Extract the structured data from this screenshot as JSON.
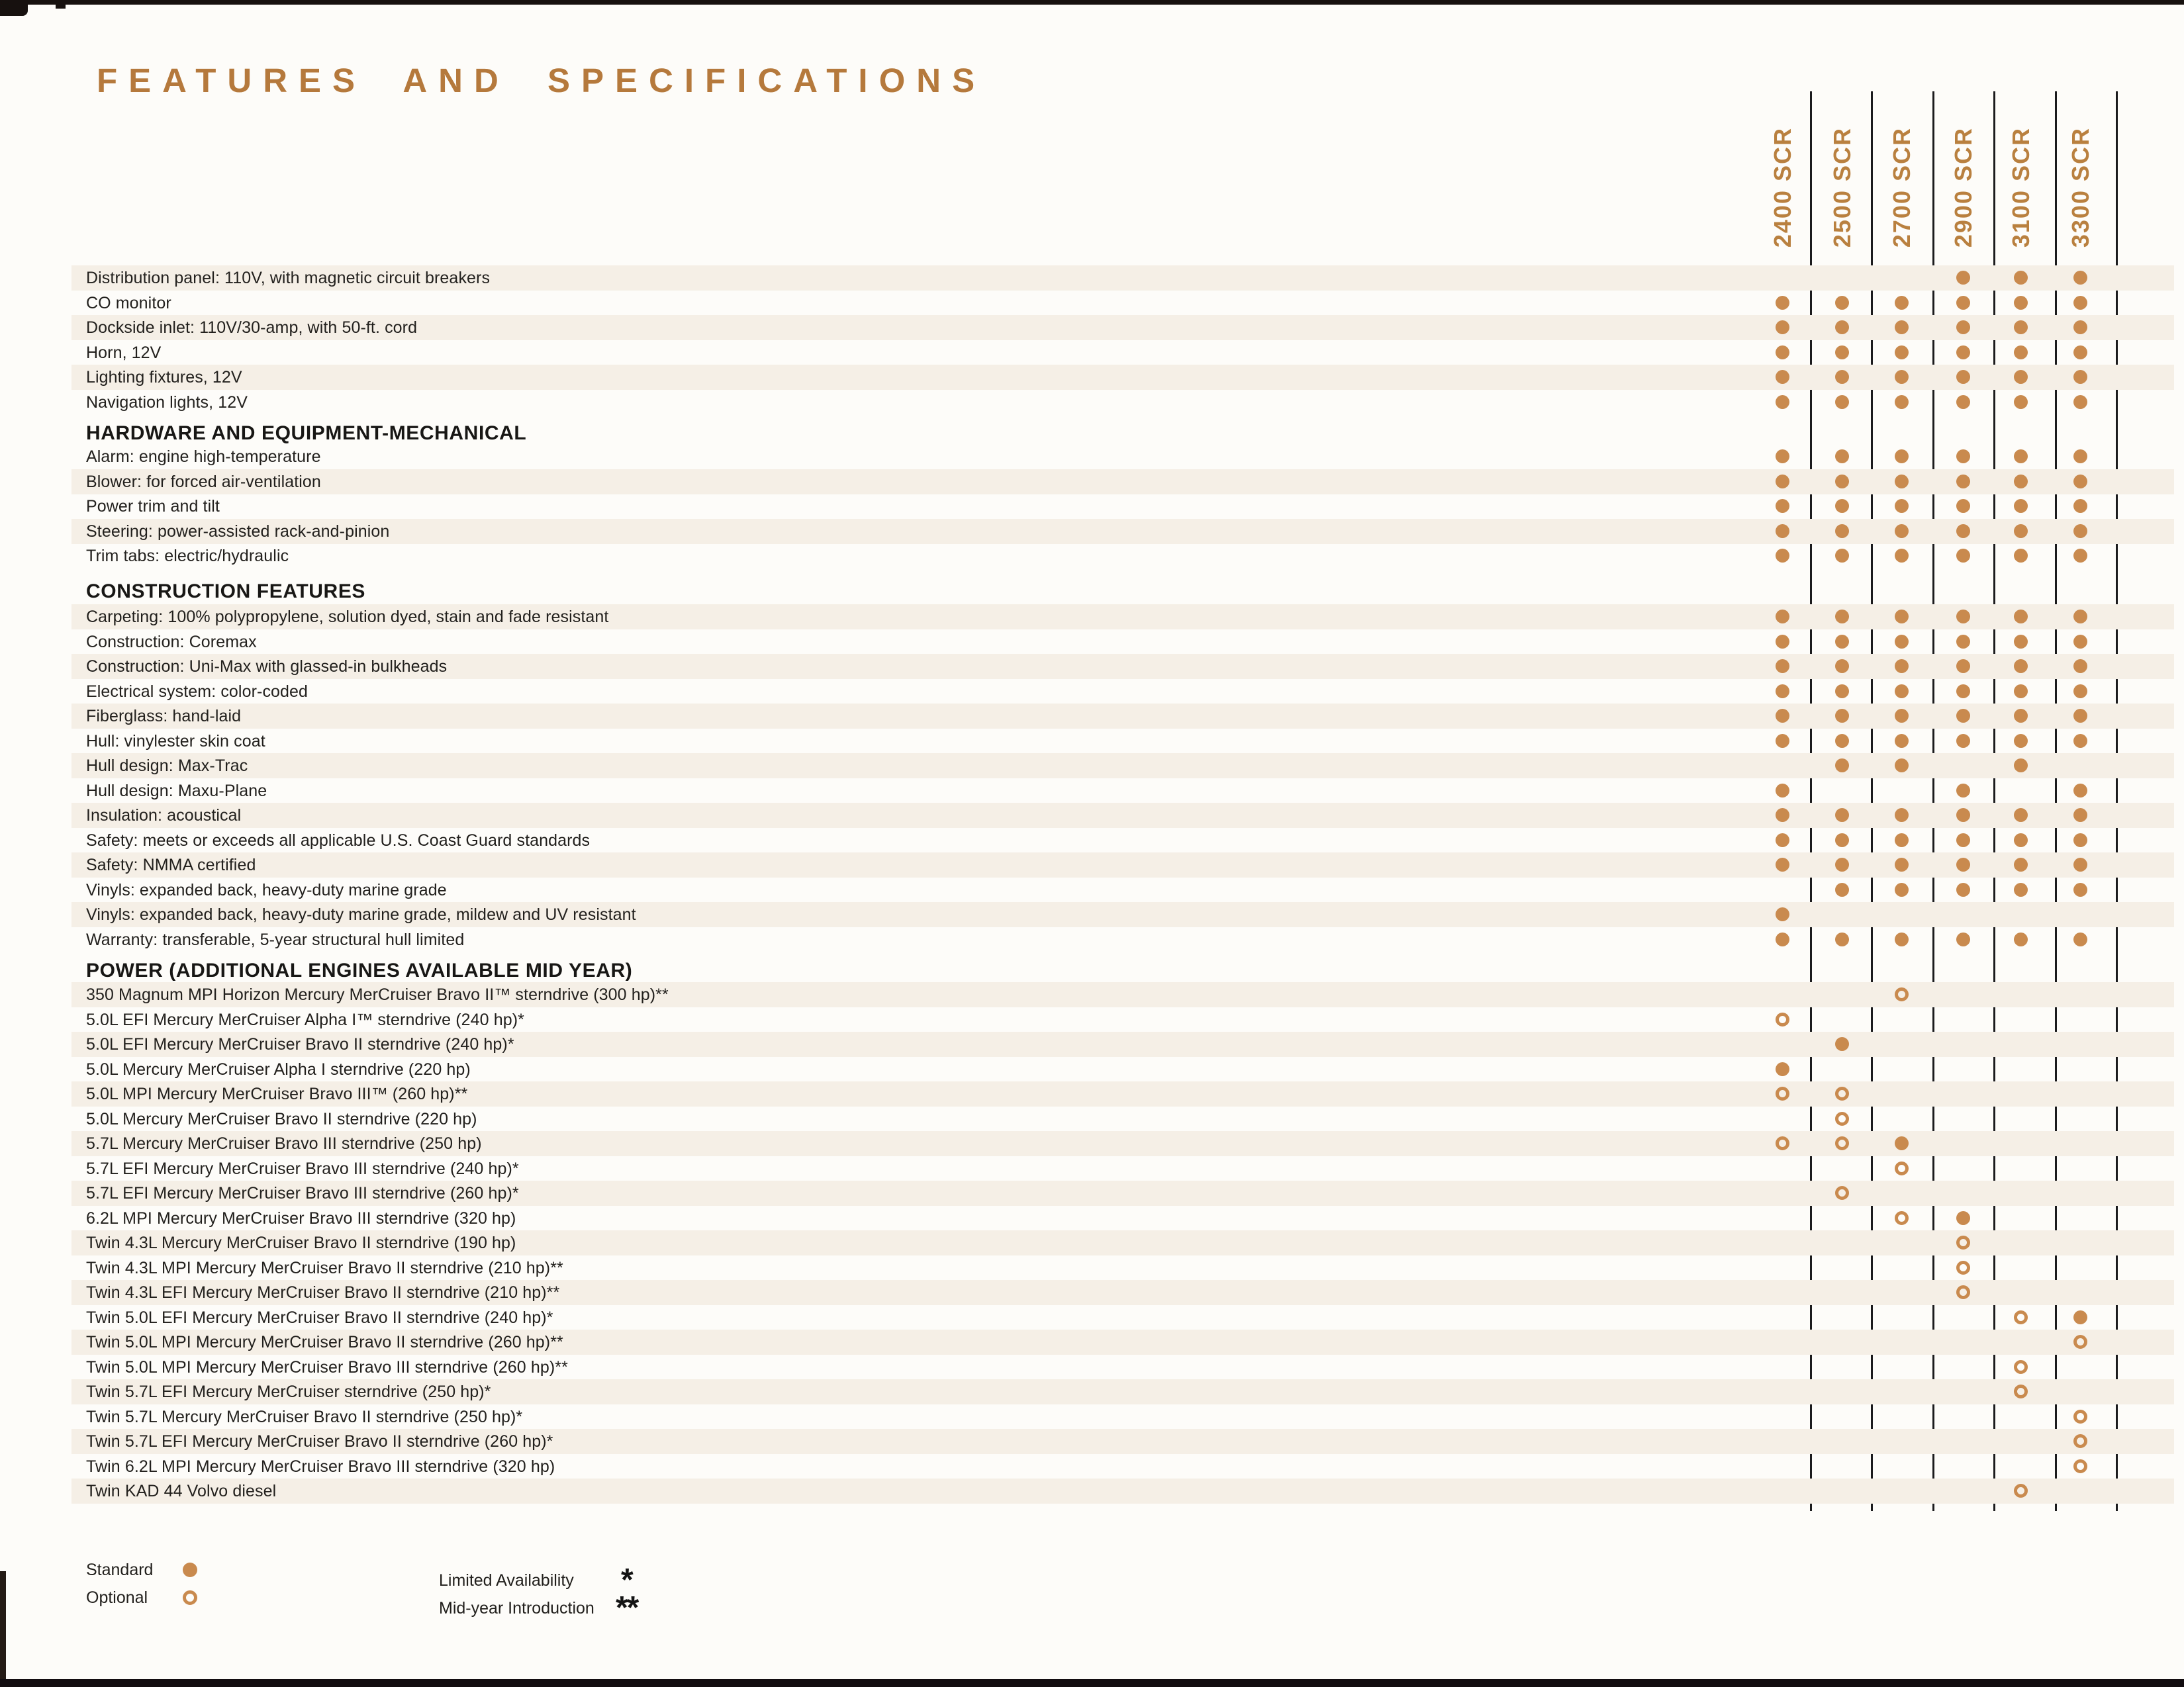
{
  "page": {
    "title": "FEATURES AND SPECIFICATIONS"
  },
  "columns": [
    "2400 SCR",
    "2500 SCR",
    "2700 SCR",
    "2900 SCR",
    "3100 SCR",
    "3300 SCR"
  ],
  "legend": {
    "standard": "Standard",
    "optional": "Optional",
    "limited": "Limited Availability",
    "limited_symbol": "*",
    "midyear": "Mid-year Introduction",
    "midyear_symbol": "**"
  },
  "colors": {
    "accent": "#b5793c",
    "marker": "#c98a4e",
    "stripe": "#f5efe6",
    "text": "#22201d"
  },
  "marker_legend": {
    "S": "standard-filled-dot",
    "O": "optional-open-circle"
  },
  "sections": [
    {
      "header": "",
      "rows": [
        {
          "label": "Distribution panel: 110V, with magnetic circuit breakers",
          "marks": [
            "",
            "",
            "",
            "S",
            "S",
            "S"
          ]
        },
        {
          "label": "CO monitor",
          "marks": [
            "S",
            "S",
            "S",
            "S",
            "S",
            "S"
          ]
        },
        {
          "label": "Dockside inlet: 110V/30-amp, with 50-ft. cord",
          "marks": [
            "S",
            "S",
            "S",
            "S",
            "S",
            "S"
          ]
        },
        {
          "label": "Horn, 12V",
          "marks": [
            "S",
            "S",
            "S",
            "S",
            "S",
            "S"
          ]
        },
        {
          "label": "Lighting fixtures, 12V",
          "marks": [
            "S",
            "S",
            "S",
            "S",
            "S",
            "S"
          ]
        },
        {
          "label": "Navigation lights, 12V",
          "marks": [
            "S",
            "S",
            "S",
            "S",
            "S",
            "S"
          ]
        }
      ]
    },
    {
      "header": "HARDWARE AND EQUIPMENT-MECHANICAL",
      "rows": [
        {
          "label": "Alarm: engine high-temperature",
          "marks": [
            "S",
            "S",
            "S",
            "S",
            "S",
            "S"
          ]
        },
        {
          "label": "Blower: for forced air-ventilation",
          "marks": [
            "S",
            "S",
            "S",
            "S",
            "S",
            "S"
          ]
        },
        {
          "label": "Power trim and tilt",
          "marks": [
            "S",
            "S",
            "S",
            "S",
            "S",
            "S"
          ]
        },
        {
          "label": "Steering: power-assisted rack-and-pinion",
          "marks": [
            "S",
            "S",
            "S",
            "S",
            "S",
            "S"
          ]
        },
        {
          "label": "Trim tabs: electric/hydraulic",
          "marks": [
            "S",
            "S",
            "S",
            "S",
            "S",
            "S"
          ]
        }
      ]
    },
    {
      "header": "CONSTRUCTION FEATURES",
      "rows": [
        {
          "label": "Carpeting: 100% polypropylene, solution dyed, stain and fade resistant",
          "marks": [
            "S",
            "S",
            "S",
            "S",
            "S",
            "S"
          ]
        },
        {
          "label": "Construction: Coremax",
          "marks": [
            "S",
            "S",
            "S",
            "S",
            "S",
            "S"
          ]
        },
        {
          "label": "Construction: Uni-Max with glassed-in bulkheads",
          "marks": [
            "S",
            "S",
            "S",
            "S",
            "S",
            "S"
          ]
        },
        {
          "label": "Electrical system: color-coded",
          "marks": [
            "S",
            "S",
            "S",
            "S",
            "S",
            "S"
          ]
        },
        {
          "label": "Fiberglass: hand-laid",
          "marks": [
            "S",
            "S",
            "S",
            "S",
            "S",
            "S"
          ]
        },
        {
          "label": "Hull: vinylester skin coat",
          "marks": [
            "S",
            "S",
            "S",
            "S",
            "S",
            "S"
          ]
        },
        {
          "label": "Hull design: Max-Trac",
          "marks": [
            "",
            "S",
            "S",
            "",
            "S",
            ""
          ]
        },
        {
          "label": "Hull design: Maxu-Plane",
          "marks": [
            "S",
            "",
            "",
            "S",
            "",
            "S"
          ]
        },
        {
          "label": "Insulation: acoustical",
          "marks": [
            "S",
            "S",
            "S",
            "S",
            "S",
            "S"
          ]
        },
        {
          "label": "Safety: meets or exceeds all applicable U.S. Coast Guard standards",
          "marks": [
            "S",
            "S",
            "S",
            "S",
            "S",
            "S"
          ]
        },
        {
          "label": "Safety: NMMA certified",
          "marks": [
            "S",
            "S",
            "S",
            "S",
            "S",
            "S"
          ]
        },
        {
          "label": "Vinyls: expanded back, heavy-duty marine grade",
          "marks": [
            "",
            "S",
            "S",
            "S",
            "S",
            "S"
          ]
        },
        {
          "label": "Vinyls: expanded back, heavy-duty marine grade, mildew and UV resistant",
          "marks": [
            "S",
            "",
            "",
            "",
            "",
            ""
          ]
        },
        {
          "label": "Warranty: transferable, 5-year structural hull limited",
          "marks": [
            "S",
            "S",
            "S",
            "S",
            "S",
            "S"
          ]
        }
      ]
    },
    {
      "header": "POWER (ADDITIONAL ENGINES AVAILABLE MID YEAR)",
      "rows": [
        {
          "label": "350 Magnum MPI Horizon Mercury MerCruiser Bravo II™ sterndrive (300 hp)**",
          "marks": [
            "",
            "",
            "O",
            "",
            "",
            ""
          ]
        },
        {
          "label": "5.0L EFI Mercury MerCruiser Alpha I™ sterndrive (240 hp)*",
          "marks": [
            "O",
            "",
            "",
            "",
            "",
            ""
          ]
        },
        {
          "label": "5.0L EFI Mercury MerCruiser Bravo II sterndrive (240 hp)*",
          "marks": [
            "",
            "S",
            "",
            "",
            "",
            ""
          ]
        },
        {
          "label": "5.0L Mercury MerCruiser Alpha I sterndrive (220 hp)",
          "marks": [
            "S",
            "",
            "",
            "",
            "",
            ""
          ]
        },
        {
          "label": "5.0L MPI Mercury MerCruiser Bravo III™ (260 hp)**",
          "marks": [
            "O",
            "O",
            "",
            "",
            "",
            ""
          ]
        },
        {
          "label": "5.0L Mercury MerCruiser Bravo II sterndrive (220 hp)",
          "marks": [
            "",
            "O",
            "",
            "",
            "",
            ""
          ]
        },
        {
          "label": "5.7L Mercury MerCruiser Bravo III sterndrive (250 hp)",
          "marks": [
            "O",
            "O",
            "S",
            "",
            "",
            ""
          ]
        },
        {
          "label": "5.7L EFI Mercury MerCruiser Bravo III sterndrive (240 hp)*",
          "marks": [
            "",
            "",
            "O",
            "",
            "",
            ""
          ]
        },
        {
          "label": "5.7L EFI Mercury MerCruiser Bravo III sterndrive (260 hp)*",
          "marks": [
            "",
            "O",
            "",
            "",
            "",
            ""
          ]
        },
        {
          "label": "6.2L MPI Mercury MerCruiser Bravo III sterndrive (320 hp)",
          "marks": [
            "",
            "",
            "O",
            "S",
            "",
            ""
          ]
        },
        {
          "label": "Twin 4.3L Mercury MerCruiser Bravo II sterndrive (190 hp)",
          "marks": [
            "",
            "",
            "",
            "O",
            "",
            ""
          ]
        },
        {
          "label": "Twin 4.3L MPI Mercury MerCruiser Bravo II sterndrive (210 hp)**",
          "marks": [
            "",
            "",
            "",
            "O",
            "",
            ""
          ]
        },
        {
          "label": "Twin 4.3L EFI Mercury MerCruiser Bravo II sterndrive (210 hp)**",
          "marks": [
            "",
            "",
            "",
            "O",
            "",
            ""
          ]
        },
        {
          "label": "Twin 5.0L EFI Mercury MerCruiser Bravo II sterndrive (240 hp)*",
          "marks": [
            "",
            "",
            "",
            "",
            "O",
            "S"
          ]
        },
        {
          "label": "Twin 5.0L MPI Mercury MerCruiser Bravo II sterndrive (260 hp)**",
          "marks": [
            "",
            "",
            "",
            "",
            "",
            "O"
          ]
        },
        {
          "label": "Twin 5.0L MPI Mercury MerCruiser Bravo III sterndrive (260 hp)**",
          "marks": [
            "",
            "",
            "",
            "",
            "O",
            ""
          ]
        },
        {
          "label": "Twin 5.7L EFI Mercury MerCruiser sterndrive (250 hp)*",
          "marks": [
            "",
            "",
            "",
            "",
            "O",
            ""
          ]
        },
        {
          "label": "Twin 5.7L Mercury MerCruiser Bravo II sterndrive (250 hp)*",
          "marks": [
            "",
            "",
            "",
            "",
            "",
            "O"
          ]
        },
        {
          "label": "Twin 5.7L EFI Mercury MerCruiser Bravo II sterndrive (260 hp)*",
          "marks": [
            "",
            "",
            "",
            "",
            "",
            "O"
          ]
        },
        {
          "label": "Twin 6.2L MPI Mercury MerCruiser Bravo III sterndrive (320 hp)",
          "marks": [
            "",
            "",
            "",
            "",
            "",
            "O"
          ]
        },
        {
          "label": "Twin KAD 44 Volvo diesel",
          "marks": [
            "",
            "",
            "",
            "",
            "O",
            ""
          ]
        }
      ]
    }
  ]
}
